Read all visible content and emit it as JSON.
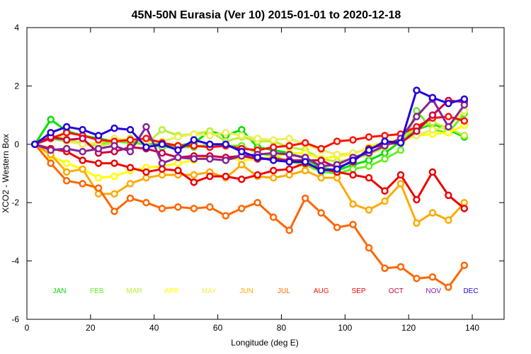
{
  "chart_data": {
    "type": "line",
    "title": "45N-50N Eurasia (Ver 10)   2015-01-01 to 2020-12-18",
    "xlabel": "Longitude (deg E)",
    "ylabel": "XCO2 - Western Box",
    "xlim": [
      0,
      150
    ],
    "ylim": [
      -6,
      4
    ],
    "xticks": [
      0,
      20,
      40,
      60,
      80,
      100,
      120,
      140
    ],
    "yticks": [
      -6,
      -4,
      -2,
      0,
      2,
      4
    ],
    "grid": false,
    "legend_placement": "bottom (month labels inside plot at y = -5)",
    "x": [
      2.5,
      7.5,
      12.5,
      17.5,
      22.5,
      27.5,
      32.5,
      37.5,
      42.5,
      47.5,
      52.5,
      57.5,
      62.5,
      67.5,
      72.5,
      77.5,
      82.5,
      87.5,
      92.5,
      97.5,
      102.5,
      107.5,
      112.5,
      117.5,
      122.5,
      127.5,
      132.5,
      137.5
    ],
    "series": [
      {
        "name": "JAN",
        "color": "#00e000",
        "values": [
          0.0,
          0.85,
          0.45,
          0.3,
          0.2,
          0.1,
          0.1,
          0.0,
          0.0,
          -0.05,
          0.05,
          0.45,
          0.3,
          0.5,
          -0.1,
          -0.2,
          -0.3,
          -0.5,
          -0.8,
          -0.9,
          -0.7,
          -0.55,
          -0.3,
          0.1,
          0.5,
          0.7,
          0.5,
          0.25
        ]
      },
      {
        "name": "FEB",
        "color": "#66ee22",
        "values": [
          0.0,
          0.2,
          0.1,
          0.05,
          0.0,
          0.1,
          0.05,
          0.0,
          -0.1,
          -0.1,
          -0.1,
          0.0,
          -0.05,
          -0.05,
          -0.3,
          -0.4,
          -0.6,
          -0.7,
          -0.95,
          -1.0,
          -0.85,
          -0.75,
          -0.5,
          -0.2,
          1.15,
          0.5,
          0.4,
          1.05
        ]
      },
      {
        "name": "MAR",
        "color": "#bbee33",
        "values": [
          0.0,
          0.3,
          0.2,
          0.0,
          -0.05,
          0.05,
          0.2,
          0.0,
          0.5,
          0.3,
          0.35,
          0.45,
          0.1,
          0.25,
          0.1,
          0.1,
          -0.1,
          -0.2,
          -0.5,
          -0.6,
          -0.5,
          -0.35,
          -0.1,
          0.2,
          0.55,
          0.75,
          0.55,
          0.3
        ]
      },
      {
        "name": "APR",
        "color": "#ffff00",
        "values": [
          0.0,
          -0.4,
          -0.65,
          -0.85,
          -1.15,
          -1.1,
          -0.9,
          -0.8,
          -0.75,
          -0.65,
          -0.55,
          -0.4,
          -0.45,
          -0.55,
          -0.5,
          -0.45,
          -0.3,
          -0.3,
          -0.5,
          -0.4,
          -0.35,
          -0.1,
          0.1,
          0.15,
          0.3,
          0.35,
          0.4,
          0.65
        ]
      },
      {
        "name": "MAY",
        "color": "#eeee55",
        "values": [
          0.0,
          0.3,
          0.1,
          0.0,
          0.05,
          0.2,
          0.15,
          0.1,
          0.1,
          0.25,
          0.35,
          0.3,
          0.4,
          0.3,
          0.2,
          0.15,
          0.2,
          0.0,
          -0.2,
          -0.35,
          -0.3,
          -0.15,
          0.0,
          0.1,
          0.3,
          0.5,
          0.6,
          1.15
        ]
      },
      {
        "name": "JUN",
        "color": "#ffaa00",
        "values": [
          0.0,
          -0.35,
          -0.95,
          -0.85,
          -1.7,
          -1.7,
          -1.35,
          -1.15,
          -1.05,
          -1.05,
          -1.05,
          -0.95,
          -1.15,
          -0.7,
          -1.1,
          -1.15,
          -1.05,
          -0.9,
          -1.15,
          -1.15,
          -2.05,
          -2.25,
          -1.95,
          -1.35,
          -2.7,
          -2.35,
          -2.6,
          -2.0
        ]
      },
      {
        "name": "JUL",
        "color": "#ff6600",
        "values": [
          0.0,
          -0.65,
          -1.25,
          -1.35,
          -1.5,
          -2.3,
          -1.85,
          -2.0,
          -2.2,
          -2.15,
          -2.2,
          -2.15,
          -2.45,
          -2.2,
          -2.0,
          -2.5,
          -2.95,
          -1.85,
          -2.35,
          -2.85,
          -2.75,
          -3.55,
          -4.25,
          -4.2,
          -4.6,
          -4.55,
          -4.9,
          -4.15
        ]
      },
      {
        "name": "AUG",
        "color": "#ff1100",
        "values": [
          0.0,
          0.2,
          0.4,
          0.3,
          0.15,
          0.1,
          0.15,
          0.2,
          0.05,
          -0.05,
          -0.05,
          -0.1,
          -0.05,
          -0.15,
          -0.2,
          -0.1,
          -0.05,
          0.05,
          -0.15,
          0.1,
          0.15,
          0.25,
          0.3,
          0.35,
          0.6,
          0.9,
          0.95,
          0.8
        ]
      },
      {
        "name": "SEP",
        "color": "#ee0000",
        "values": [
          0.0,
          -0.15,
          -0.25,
          -0.55,
          -0.65,
          -0.65,
          -0.8,
          -0.95,
          -0.85,
          -0.9,
          -1.3,
          -1.1,
          -1.1,
          -1.2,
          -1.05,
          -0.9,
          -0.85,
          -0.65,
          -0.85,
          -0.95,
          -1.05,
          -1.15,
          -1.6,
          -1.05,
          -1.9,
          -0.95,
          -1.75,
          -2.2
        ]
      },
      {
        "name": "OCT",
        "color": "#cc0044",
        "values": [
          0.0,
          0.25,
          0.15,
          0.2,
          -0.3,
          -0.25,
          -0.1,
          -0.15,
          -0.3,
          -0.45,
          -0.4,
          -0.4,
          -0.45,
          -0.4,
          -0.5,
          -0.5,
          -0.55,
          -0.55,
          -0.55,
          -0.8,
          -0.6,
          -0.15,
          0.0,
          0.05,
          0.45,
          1.0,
          1.5,
          1.45
        ]
      },
      {
        "name": "NOV",
        "color": "#882299",
        "values": [
          0.0,
          -0.2,
          -0.15,
          -0.25,
          -0.15,
          -0.05,
          -0.25,
          0.6,
          -0.65,
          -0.45,
          -0.5,
          -0.5,
          -0.55,
          -0.4,
          -0.35,
          -0.3,
          -0.35,
          -0.45,
          -0.75,
          -0.7,
          -0.45,
          -0.3,
          -0.05,
          0.2,
          0.95,
          1.55,
          0.6,
          1.35
        ]
      },
      {
        "name": "DEC",
        "color": "#2200dd",
        "values": [
          0.0,
          0.4,
          0.6,
          0.5,
          0.3,
          0.55,
          0.5,
          -0.1,
          0.0,
          -0.2,
          0.15,
          0.0,
          0.0,
          -0.25,
          -0.45,
          -0.55,
          -0.6,
          -0.6,
          -0.9,
          -0.85,
          -0.55,
          -0.2,
          0.1,
          0.05,
          1.85,
          1.6,
          1.4,
          1.55
        ]
      }
    ]
  }
}
